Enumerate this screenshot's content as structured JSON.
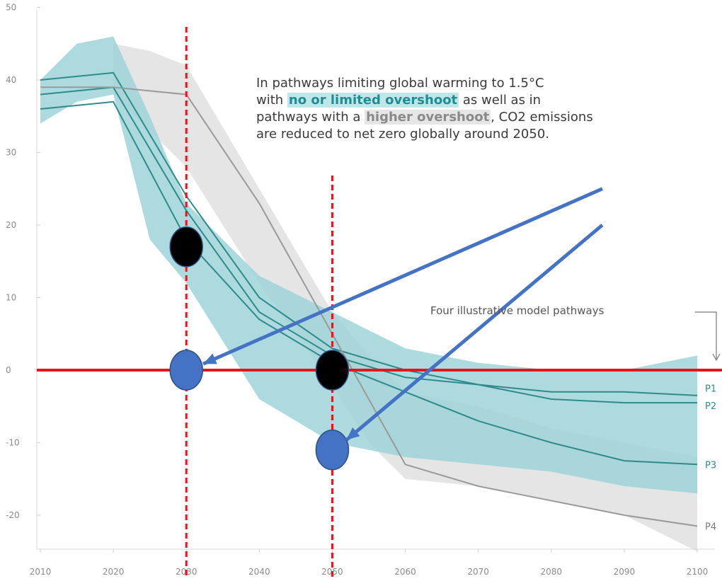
{
  "chart_data": {
    "type": "line",
    "x_ticks": [
      "2010",
      "2020",
      "2030",
      "2040",
      "2050",
      "2060",
      "2070",
      "2080",
      "2090",
      "2100"
    ],
    "y_ticks": [
      "50",
      "40",
      "30",
      "20",
      "10",
      "0",
      "-10",
      "-20"
    ],
    "xlim": [
      2010,
      2100
    ],
    "ylim": [
      -25,
      50
    ],
    "grid": false,
    "annotation": {
      "line1": "In pathways limiting global warming to 1.5°C",
      "line2_prefix": "with ",
      "line2_highlight": "no or limited overshoot",
      "line2_suffix": " as well as in",
      "line3_prefix": "pathways with a ",
      "line3_highlight": "higher overshoot",
      "line3_suffix": ", CO2 emissions",
      "line4": "are reduced to net zero globally around 2050."
    },
    "pathways_label": "Four illustrative model pathways",
    "bands": [
      {
        "name": "no or limited overshoot",
        "color": "#9fd4d8",
        "x": [
          2010,
          2015,
          2020,
          2025,
          2030,
          2040,
          2050,
          2060,
          2070,
          2080,
          2090,
          2100
        ],
        "upper": [
          40,
          45,
          46,
          35,
          23,
          13,
          8,
          3,
          1,
          0,
          0,
          2
        ],
        "lower": [
          34,
          37,
          38,
          18,
          12,
          -4,
          -10,
          -12,
          -13,
          -14,
          -16,
          -17
        ]
      },
      {
        "name": "higher overshoot",
        "color": "#e0e0e0",
        "x": [
          2020,
          2025,
          2030,
          2040,
          2050,
          2055,
          2060,
          2070,
          2080,
          2090,
          2100
        ],
        "upper": [
          45,
          44,
          42,
          25,
          8,
          2,
          -3,
          -5,
          -8,
          -10,
          -12
        ],
        "lower": [
          38,
          33,
          28,
          12,
          -2,
          -10,
          -15,
          -16,
          -18,
          -20,
          -25
        ]
      }
    ],
    "series": [
      {
        "name": "P1",
        "color": "#2e8b8b",
        "x": [
          2010,
          2020,
          2030,
          2040,
          2050,
          2060,
          2070,
          2080,
          2090,
          2100
        ],
        "y": [
          38,
          39,
          22,
          8,
          2,
          -1,
          -2,
          -3,
          -3,
          -3.5
        ]
      },
      {
        "name": "P2",
        "color": "#2e8b8b",
        "x": [
          2010,
          2020,
          2030,
          2040,
          2050,
          2060,
          2070,
          2080,
          2090,
          2100
        ],
        "y": [
          40,
          41,
          24,
          10,
          3,
          0,
          -2,
          -4,
          -4.5,
          -4.5
        ]
      },
      {
        "name": "P3",
        "color": "#2e8b8b",
        "x": [
          2010,
          2020,
          2030,
          2040,
          2050,
          2060,
          2070,
          2080,
          2090,
          2100
        ],
        "y": [
          36,
          37,
          18,
          7,
          1,
          -3,
          -7,
          -10,
          -12.5,
          -13
        ]
      },
      {
        "name": "P4",
        "color": "#9a9a9a",
        "x": [
          2010,
          2020,
          2030,
          2040,
          2050,
          2060,
          2070,
          2080,
          2090,
          2100
        ],
        "y": [
          39,
          39,
          38,
          23,
          5,
          -13,
          -16,
          -18,
          -20,
          -21.5
        ]
      }
    ],
    "overlays": {
      "vlines": [
        2030,
        2050
      ],
      "hline": 0,
      "black_dots": [
        {
          "x": 2030,
          "y": 17
        },
        {
          "x": 2050,
          "y": 0
        }
      ],
      "blue_dots": [
        {
          "x": 2030,
          "y": 0
        },
        {
          "x": 2050,
          "y": -11
        }
      ],
      "arrows": [
        {
          "from": {
            "x": 2087,
            "y": 25
          },
          "to": {
            "x": 2030,
            "y": 0
          }
        },
        {
          "from": {
            "x": 2087,
            "y": 20
          },
          "to": {
            "x": 2050,
            "y": -11
          }
        }
      ],
      "red": "#e8141c",
      "blue": "#4472c4"
    }
  }
}
